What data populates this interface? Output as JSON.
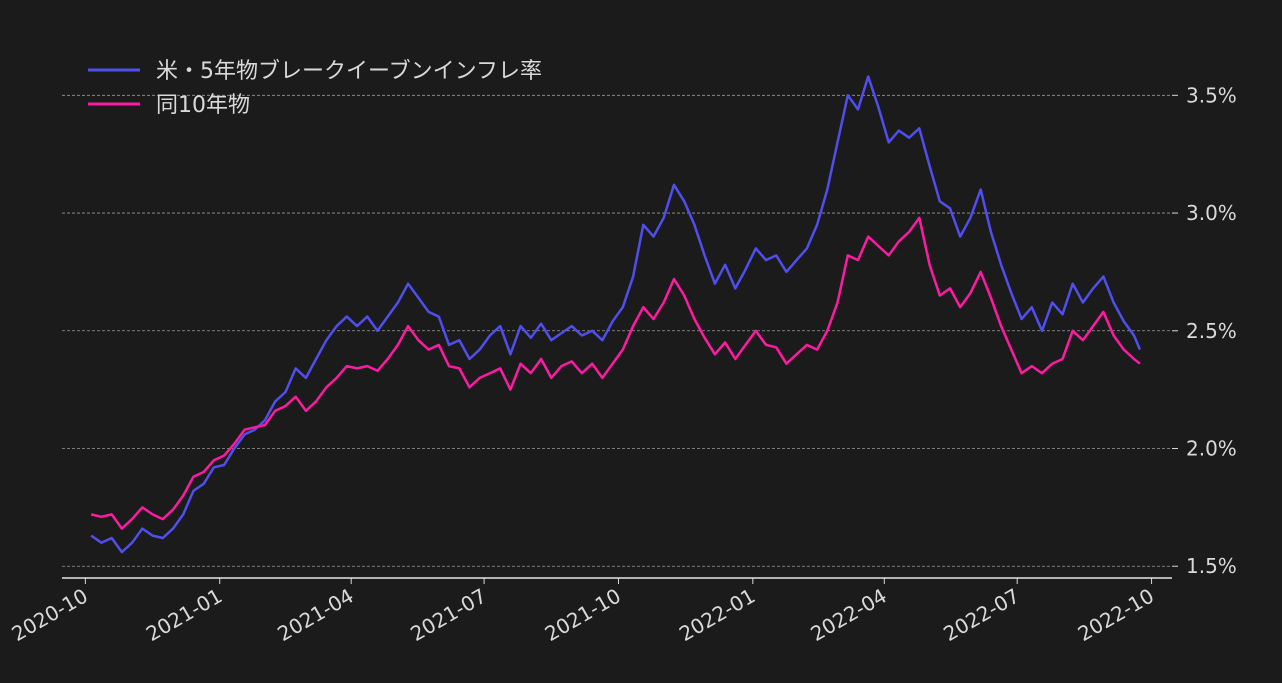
{
  "chart_data": {
    "type": "line",
    "title": "",
    "xlabel": "",
    "ylabel": "",
    "grid": "horizontal dashed",
    "legend_position": "top-left",
    "y_axis_side": "right",
    "ylim": [
      1.45,
      3.65
    ],
    "xlim": [
      "2020-09-15",
      "2022-10-15"
    ],
    "x_ticks": [
      "2020-10",
      "2021-01",
      "2021-04",
      "2021-07",
      "2021-10",
      "2022-01",
      "2022-04",
      "2022-07",
      "2022-10"
    ],
    "y_ticks": [
      {
        "value": 1.5,
        "label": "1.5%"
      },
      {
        "value": 2.0,
        "label": "2.0%"
      },
      {
        "value": 2.5,
        "label": "2.5%"
      },
      {
        "value": 3.0,
        "label": "3.0%"
      },
      {
        "value": 3.5,
        "label": "3.5%"
      }
    ],
    "series": [
      {
        "name": "米・5年物ブレークイーブンインフレ率",
        "color": "#4f4ff0",
        "points": [
          [
            "2020-10-05",
            1.63
          ],
          [
            "2020-10-12",
            1.6
          ],
          [
            "2020-10-19",
            1.62
          ],
          [
            "2020-10-26",
            1.56
          ],
          [
            "2020-11-02",
            1.6
          ],
          [
            "2020-11-09",
            1.66
          ],
          [
            "2020-11-16",
            1.63
          ],
          [
            "2020-11-23",
            1.62
          ],
          [
            "2020-11-30",
            1.66
          ],
          [
            "2020-12-07",
            1.72
          ],
          [
            "2020-12-14",
            1.82
          ],
          [
            "2020-12-21",
            1.85
          ],
          [
            "2020-12-28",
            1.92
          ],
          [
            "2021-01-04",
            1.93
          ],
          [
            "2021-01-11",
            2.0
          ],
          [
            "2021-01-18",
            2.06
          ],
          [
            "2021-01-25",
            2.08
          ],
          [
            "2021-02-01",
            2.12
          ],
          [
            "2021-02-08",
            2.2
          ],
          [
            "2021-02-15",
            2.24
          ],
          [
            "2021-02-22",
            2.34
          ],
          [
            "2021-03-01",
            2.3
          ],
          [
            "2021-03-08",
            2.38
          ],
          [
            "2021-03-15",
            2.46
          ],
          [
            "2021-03-22",
            2.52
          ],
          [
            "2021-03-29",
            2.56
          ],
          [
            "2021-04-05",
            2.52
          ],
          [
            "2021-04-12",
            2.56
          ],
          [
            "2021-04-19",
            2.5
          ],
          [
            "2021-04-26",
            2.56
          ],
          [
            "2021-05-03",
            2.62
          ],
          [
            "2021-05-10",
            2.7
          ],
          [
            "2021-05-17",
            2.64
          ],
          [
            "2021-05-24",
            2.58
          ],
          [
            "2021-05-31",
            2.56
          ],
          [
            "2021-06-07",
            2.44
          ],
          [
            "2021-06-14",
            2.46
          ],
          [
            "2021-06-21",
            2.38
          ],
          [
            "2021-06-28",
            2.42
          ],
          [
            "2021-07-05",
            2.48
          ],
          [
            "2021-07-12",
            2.52
          ],
          [
            "2021-07-19",
            2.4
          ],
          [
            "2021-07-26",
            2.52
          ],
          [
            "2021-08-02",
            2.47
          ],
          [
            "2021-08-09",
            2.53
          ],
          [
            "2021-08-16",
            2.46
          ],
          [
            "2021-08-23",
            2.49
          ],
          [
            "2021-08-30",
            2.52
          ],
          [
            "2021-09-06",
            2.48
          ],
          [
            "2021-09-13",
            2.5
          ],
          [
            "2021-09-20",
            2.46
          ],
          [
            "2021-09-27",
            2.54
          ],
          [
            "2021-10-04",
            2.6
          ],
          [
            "2021-10-11",
            2.73
          ],
          [
            "2021-10-18",
            2.95
          ],
          [
            "2021-10-25",
            2.9
          ],
          [
            "2021-11-01",
            2.98
          ],
          [
            "2021-11-08",
            3.12
          ],
          [
            "2021-11-15",
            3.05
          ],
          [
            "2021-11-22",
            2.95
          ],
          [
            "2021-11-29",
            2.82
          ],
          [
            "2021-12-06",
            2.7
          ],
          [
            "2021-12-13",
            2.78
          ],
          [
            "2021-12-20",
            2.68
          ],
          [
            "2021-12-27",
            2.76
          ],
          [
            "2022-01-03",
            2.85
          ],
          [
            "2022-01-10",
            2.8
          ],
          [
            "2022-01-17",
            2.82
          ],
          [
            "2022-01-24",
            2.75
          ],
          [
            "2022-01-31",
            2.8
          ],
          [
            "2022-02-07",
            2.85
          ],
          [
            "2022-02-14",
            2.95
          ],
          [
            "2022-02-21",
            3.1
          ],
          [
            "2022-02-28",
            3.3
          ],
          [
            "2022-03-07",
            3.5
          ],
          [
            "2022-03-14",
            3.44
          ],
          [
            "2022-03-21",
            3.58
          ],
          [
            "2022-03-28",
            3.45
          ],
          [
            "2022-04-04",
            3.3
          ],
          [
            "2022-04-11",
            3.35
          ],
          [
            "2022-04-18",
            3.32
          ],
          [
            "2022-04-25",
            3.36
          ],
          [
            "2022-05-02",
            3.2
          ],
          [
            "2022-05-09",
            3.05
          ],
          [
            "2022-05-16",
            3.02
          ],
          [
            "2022-05-23",
            2.9
          ],
          [
            "2022-05-30",
            2.98
          ],
          [
            "2022-06-06",
            3.1
          ],
          [
            "2022-06-13",
            2.92
          ],
          [
            "2022-06-20",
            2.78
          ],
          [
            "2022-06-27",
            2.66
          ],
          [
            "2022-07-04",
            2.55
          ],
          [
            "2022-07-11",
            2.6
          ],
          [
            "2022-07-18",
            2.5
          ],
          [
            "2022-07-25",
            2.62
          ],
          [
            "2022-08-01",
            2.57
          ],
          [
            "2022-08-08",
            2.7
          ],
          [
            "2022-08-15",
            2.62
          ],
          [
            "2022-08-22",
            2.68
          ],
          [
            "2022-08-29",
            2.73
          ],
          [
            "2022-09-05",
            2.62
          ],
          [
            "2022-09-12",
            2.54
          ],
          [
            "2022-09-19",
            2.48
          ],
          [
            "2022-09-23",
            2.42
          ]
        ]
      },
      {
        "name": "同10年物",
        "color": "#ff1aa3",
        "points": [
          [
            "2020-10-05",
            1.72
          ],
          [
            "2020-10-12",
            1.71
          ],
          [
            "2020-10-19",
            1.72
          ],
          [
            "2020-10-26",
            1.66
          ],
          [
            "2020-11-02",
            1.7
          ],
          [
            "2020-11-09",
            1.75
          ],
          [
            "2020-11-16",
            1.72
          ],
          [
            "2020-11-23",
            1.7
          ],
          [
            "2020-11-30",
            1.74
          ],
          [
            "2020-12-07",
            1.8
          ],
          [
            "2020-12-14",
            1.88
          ],
          [
            "2020-12-21",
            1.9
          ],
          [
            "2020-12-28",
            1.95
          ],
          [
            "2021-01-04",
            1.97
          ],
          [
            "2021-01-11",
            2.02
          ],
          [
            "2021-01-18",
            2.08
          ],
          [
            "2021-01-25",
            2.09
          ],
          [
            "2021-02-01",
            2.1
          ],
          [
            "2021-02-08",
            2.16
          ],
          [
            "2021-02-15",
            2.18
          ],
          [
            "2021-02-22",
            2.22
          ],
          [
            "2021-03-01",
            2.16
          ],
          [
            "2021-03-08",
            2.2
          ],
          [
            "2021-03-15",
            2.26
          ],
          [
            "2021-03-22",
            2.3
          ],
          [
            "2021-03-29",
            2.35
          ],
          [
            "2021-04-05",
            2.34
          ],
          [
            "2021-04-12",
            2.35
          ],
          [
            "2021-04-19",
            2.33
          ],
          [
            "2021-04-26",
            2.38
          ],
          [
            "2021-05-03",
            2.44
          ],
          [
            "2021-05-10",
            2.52
          ],
          [
            "2021-05-17",
            2.46
          ],
          [
            "2021-05-24",
            2.42
          ],
          [
            "2021-05-31",
            2.44
          ],
          [
            "2021-06-07",
            2.35
          ],
          [
            "2021-06-14",
            2.34
          ],
          [
            "2021-06-21",
            2.26
          ],
          [
            "2021-06-28",
            2.3
          ],
          [
            "2021-07-05",
            2.32
          ],
          [
            "2021-07-12",
            2.34
          ],
          [
            "2021-07-19",
            2.25
          ],
          [
            "2021-07-26",
            2.36
          ],
          [
            "2021-08-02",
            2.32
          ],
          [
            "2021-08-09",
            2.38
          ],
          [
            "2021-08-16",
            2.3
          ],
          [
            "2021-08-23",
            2.35
          ],
          [
            "2021-08-30",
            2.37
          ],
          [
            "2021-09-06",
            2.32
          ],
          [
            "2021-09-13",
            2.36
          ],
          [
            "2021-09-20",
            2.3
          ],
          [
            "2021-09-27",
            2.36
          ],
          [
            "2021-10-04",
            2.42
          ],
          [
            "2021-10-11",
            2.52
          ],
          [
            "2021-10-18",
            2.6
          ],
          [
            "2021-10-25",
            2.55
          ],
          [
            "2021-11-01",
            2.62
          ],
          [
            "2021-11-08",
            2.72
          ],
          [
            "2021-11-15",
            2.65
          ],
          [
            "2021-11-22",
            2.55
          ],
          [
            "2021-11-29",
            2.47
          ],
          [
            "2021-12-06",
            2.4
          ],
          [
            "2021-12-13",
            2.45
          ],
          [
            "2021-12-20",
            2.38
          ],
          [
            "2021-12-27",
            2.44
          ],
          [
            "2022-01-03",
            2.5
          ],
          [
            "2022-01-10",
            2.44
          ],
          [
            "2022-01-17",
            2.43
          ],
          [
            "2022-01-24",
            2.36
          ],
          [
            "2022-01-31",
            2.4
          ],
          [
            "2022-02-07",
            2.44
          ],
          [
            "2022-02-14",
            2.42
          ],
          [
            "2022-02-21",
            2.5
          ],
          [
            "2022-02-28",
            2.62
          ],
          [
            "2022-03-07",
            2.82
          ],
          [
            "2022-03-14",
            2.8
          ],
          [
            "2022-03-21",
            2.9
          ],
          [
            "2022-03-28",
            2.86
          ],
          [
            "2022-04-04",
            2.82
          ],
          [
            "2022-04-11",
            2.88
          ],
          [
            "2022-04-18",
            2.92
          ],
          [
            "2022-04-25",
            2.98
          ],
          [
            "2022-05-02",
            2.78
          ],
          [
            "2022-05-09",
            2.65
          ],
          [
            "2022-05-16",
            2.68
          ],
          [
            "2022-05-23",
            2.6
          ],
          [
            "2022-05-30",
            2.66
          ],
          [
            "2022-06-06",
            2.75
          ],
          [
            "2022-06-13",
            2.64
          ],
          [
            "2022-06-20",
            2.52
          ],
          [
            "2022-06-27",
            2.42
          ],
          [
            "2022-07-04",
            2.32
          ],
          [
            "2022-07-11",
            2.35
          ],
          [
            "2022-07-18",
            2.32
          ],
          [
            "2022-07-25",
            2.36
          ],
          [
            "2022-08-01",
            2.38
          ],
          [
            "2022-08-08",
            2.5
          ],
          [
            "2022-08-15",
            2.46
          ],
          [
            "2022-08-22",
            2.52
          ],
          [
            "2022-08-29",
            2.58
          ],
          [
            "2022-09-05",
            2.48
          ],
          [
            "2022-09-12",
            2.42
          ],
          [
            "2022-09-19",
            2.38
          ],
          [
            "2022-09-23",
            2.36
          ]
        ]
      }
    ]
  }
}
